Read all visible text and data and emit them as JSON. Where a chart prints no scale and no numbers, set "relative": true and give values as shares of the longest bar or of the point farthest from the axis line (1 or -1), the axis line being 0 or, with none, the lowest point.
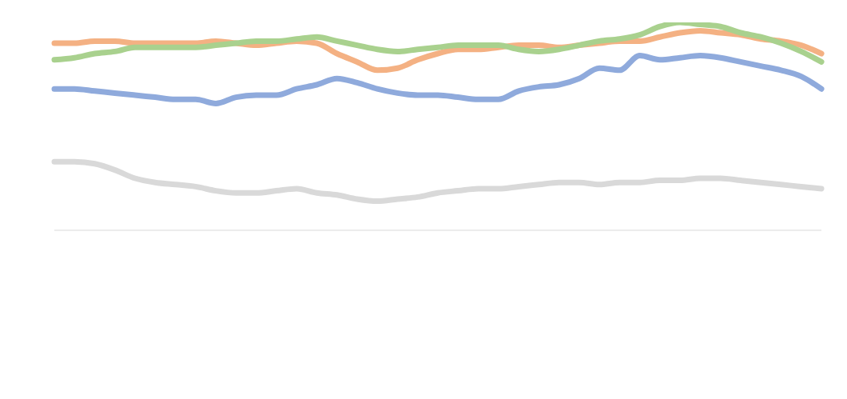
{
  "chart_data": {
    "type": "line",
    "relative": true,
    "grid": false,
    "marker": "none",
    "line_style": "solid",
    "categories": [
      null,
      null,
      null,
      null,
      null,
      null,
      null,
      null,
      null,
      null,
      null,
      null,
      null,
      null,
      null,
      null,
      null,
      null,
      null,
      null,
      null,
      null,
      null,
      null,
      null,
      null,
      null,
      null,
      null,
      null,
      null,
      null,
      null,
      null,
      null,
      null,
      null,
      null,
      null
    ],
    "series": [
      {
        "color": "#8faadc",
        "values": [
          0.68,
          0.68,
          0.67,
          0.66,
          0.65,
          0.64,
          0.63,
          0.63,
          0.61,
          0.64,
          0.65,
          0.65,
          0.68,
          0.7,
          0.73,
          0.71,
          0.68,
          0.66,
          0.65,
          0.65,
          0.64,
          0.63,
          0.63,
          0.67,
          0.69,
          0.7,
          0.73,
          0.78,
          0.77,
          0.84,
          0.82,
          0.83,
          0.84,
          0.83,
          0.81,
          0.79,
          0.77,
          0.74,
          0.68
        ]
      },
      {
        "color": "#f4b183",
        "values": [
          0.9,
          0.9,
          0.91,
          0.91,
          0.9,
          0.9,
          0.9,
          0.9,
          0.91,
          0.9,
          0.89,
          0.9,
          0.91,
          0.9,
          0.85,
          0.81,
          0.77,
          0.78,
          0.82,
          0.85,
          0.87,
          0.87,
          0.88,
          0.89,
          0.89,
          0.88,
          0.89,
          0.9,
          0.91,
          0.91,
          0.93,
          0.95,
          0.96,
          0.95,
          0.94,
          0.92,
          0.91,
          0.89,
          0.85
        ]
      },
      {
        "color": "#d9d9d9",
        "values": [
          0.33,
          0.33,
          0.32,
          0.29,
          0.25,
          0.23,
          0.22,
          0.21,
          0.19,
          0.18,
          0.18,
          0.19,
          0.2,
          0.18,
          0.17,
          0.15,
          0.14,
          0.15,
          0.16,
          0.18,
          0.19,
          0.2,
          0.2,
          0.21,
          0.22,
          0.23,
          0.23,
          0.22,
          0.23,
          0.23,
          0.24,
          0.24,
          0.25,
          0.25,
          0.24,
          0.23,
          0.22,
          0.21,
          0.2
        ]
      },
      {
        "color": "#a9d18e",
        "values": [
          0.82,
          0.83,
          0.85,
          0.86,
          0.88,
          0.88,
          0.88,
          0.88,
          0.89,
          0.9,
          0.91,
          0.91,
          0.92,
          0.93,
          0.91,
          0.89,
          0.87,
          0.86,
          0.87,
          0.88,
          0.89,
          0.89,
          0.89,
          0.87,
          0.86,
          0.87,
          0.89,
          0.91,
          0.92,
          0.94,
          0.98,
          1,
          0.99,
          0.98,
          0.95,
          0.93,
          0.9,
          0.86,
          0.81
        ]
      }
    ]
  }
}
